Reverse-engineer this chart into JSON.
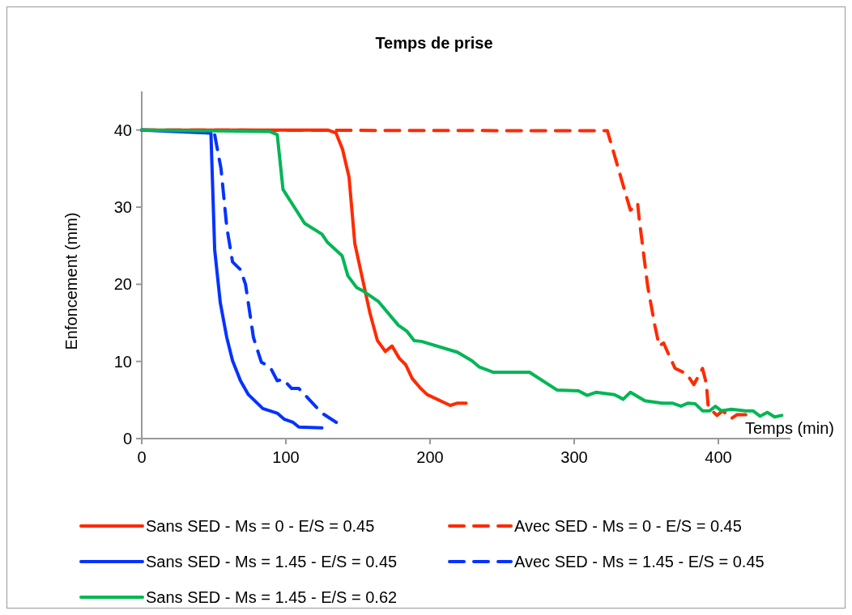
{
  "chart_data": {
    "type": "line",
    "title": "Temps de prise",
    "xlabel": "Temps (min)",
    "ylabel": "Enfoncement (mm)",
    "xlim": [
      0,
      450
    ],
    "ylim": [
      0,
      45
    ],
    "xticks": [
      0,
      100,
      200,
      300,
      400
    ],
    "yticks": [
      0,
      10,
      20,
      30,
      40
    ],
    "grid": false,
    "legend": "bottom",
    "series": [
      {
        "name": "Sans SED - Ms = 0 - E/S = 0.45",
        "color": "#ff2a00",
        "line_style": "solid",
        "x": [
          0,
          129,
          134.8,
          139.3,
          143.8,
          147.8,
          158.4,
          163.5,
          169,
          173.6,
          178.7,
          183,
          187.6,
          193,
          198,
          214,
          219,
          225
        ],
        "values": [
          40,
          40,
          39.6,
          37.5,
          33.9,
          25.3,
          16.2,
          12.7,
          11.3,
          12,
          10.4,
          9.6,
          7.8,
          6.6,
          5.7,
          4.3,
          4.6,
          4.6
        ]
      },
      {
        "name": "Avec SED - Ms = 0 - E/S = 0.45",
        "color": "#ff2a00",
        "line_style": "dashed",
        "x": [
          0,
          323,
          330,
          336,
          339,
          344,
          345,
          351,
          356,
          359,
          362,
          366,
          370,
          378,
          383,
          389,
          391.6,
          393,
          399,
          403,
          409,
          413,
          419
        ],
        "values": [
          40,
          39.9,
          35.4,
          31.5,
          29.6,
          30.5,
          28.6,
          19.7,
          14.6,
          12,
          12.4,
          10.7,
          9.1,
          8.4,
          7,
          9.1,
          7.2,
          4.1,
          3,
          3.6,
          2.6,
          3.1,
          3.1
        ]
      },
      {
        "name": "Sans SED - Ms = 1.45 - E/S = 0.45",
        "color": "#0433ff",
        "line_style": "solid",
        "x": [
          0,
          48,
          50.6,
          54.5,
          59,
          63,
          68.5,
          74,
          84,
          94,
          99,
          105,
          109,
          125
        ],
        "values": [
          40,
          39.6,
          24.5,
          17.6,
          13.1,
          10.1,
          7.5,
          5.7,
          3.9,
          3.3,
          2.5,
          2.1,
          1.5,
          1.4
        ]
      },
      {
        "name": "Avec SED - Ms = 1.45 - E/S = 0.45",
        "color": "#0433ff",
        "line_style": "dashed",
        "x": [
          0,
          48,
          50.6,
          55,
          59,
          63,
          68.5,
          72,
          77.5,
          83,
          89,
          94,
          98,
          104,
          109,
          116,
          125,
          135
        ],
        "values": [
          40,
          39.8,
          39.4,
          35,
          27.4,
          22.9,
          21.9,
          20,
          13.1,
          9.9,
          9.3,
          7.5,
          7.7,
          6.5,
          6.5,
          5.1,
          3.3,
          2.1
        ]
      },
      {
        "name": "Sans SED - Ms = 1.45 - E/S = 0.62",
        "color": "#00b655",
        "line_style": "solid",
        "x": [
          0,
          89,
          94,
          98,
          113,
          125,
          129,
          139,
          143,
          149,
          153,
          164,
          178,
          184,
          189,
          194,
          219,
          229,
          234,
          244,
          269,
          288,
          303,
          309,
          315,
          328,
          334,
          339,
          349,
          361,
          368,
          374,
          379,
          384,
          389,
          394,
          398,
          402,
          409,
          419,
          424,
          429,
          434,
          439,
          444
        ],
        "values": [
          40,
          39.8,
          39.4,
          32.3,
          27.9,
          26.5,
          25.4,
          23.7,
          21.1,
          19.6,
          19.2,
          17.8,
          14.7,
          13.9,
          12.7,
          12.6,
          11.2,
          10.1,
          9.3,
          8.6,
          8.6,
          6.3,
          6.2,
          5.6,
          6,
          5.7,
          5.1,
          6,
          4.9,
          4.6,
          4.6,
          4.2,
          4.6,
          4.5,
          3.6,
          3.6,
          4.2,
          3.6,
          3.8,
          3.6,
          3.6,
          2.9,
          3.4,
          2.8,
          3
        ]
      }
    ]
  }
}
